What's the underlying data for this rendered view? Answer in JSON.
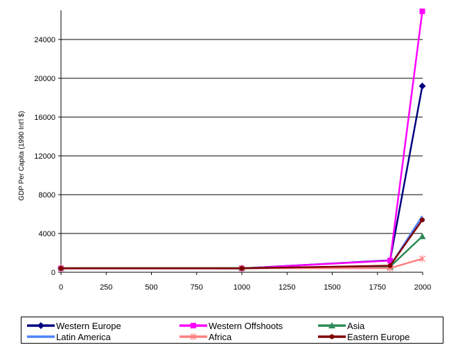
{
  "chart_data": {
    "type": "line",
    "title": "",
    "xlabel": "",
    "ylabel": "GDP Per Capita (1990 Int'l $)",
    "x": [
      0,
      1000,
      1820,
      1998
    ],
    "xlim": [
      0,
      2000
    ],
    "ylim": [
      0,
      27000
    ],
    "xticks": [
      "0",
      "250",
      "500",
      "750",
      "1000",
      "1250",
      "1500",
      "1750",
      "2000"
    ],
    "yticks": [
      "0",
      "4000",
      "8000",
      "12000",
      "16000",
      "20000",
      "24000"
    ],
    "grid": "horizontal",
    "legend_position": "bottom",
    "series": [
      {
        "name": "Western Europe",
        "color": "#000080",
        "marker": "diamond",
        "values": [
          450,
          400,
          1232,
          19200
        ]
      },
      {
        "name": "Western Offshoots",
        "color": "#ff00ff",
        "marker": "square",
        "values": [
          400,
          400,
          1201,
          26900
        ]
      },
      {
        "name": "Asia",
        "color": "#2e8b57",
        "marker": "triangle",
        "values": [
          450,
          450,
          575,
          3700
        ]
      },
      {
        "name": "Latin America",
        "color": "#4f81ff",
        "marker": "none",
        "values": [
          400,
          400,
          665,
          5800
        ]
      },
      {
        "name": "Africa",
        "color": "#ff8080",
        "marker": "star",
        "values": [
          425,
          416,
          420,
          1400
        ]
      },
      {
        "name": "Eastern Europe",
        "color": "#800000",
        "marker": "circle",
        "values": [
          400,
          400,
          683,
          5400
        ]
      }
    ]
  }
}
